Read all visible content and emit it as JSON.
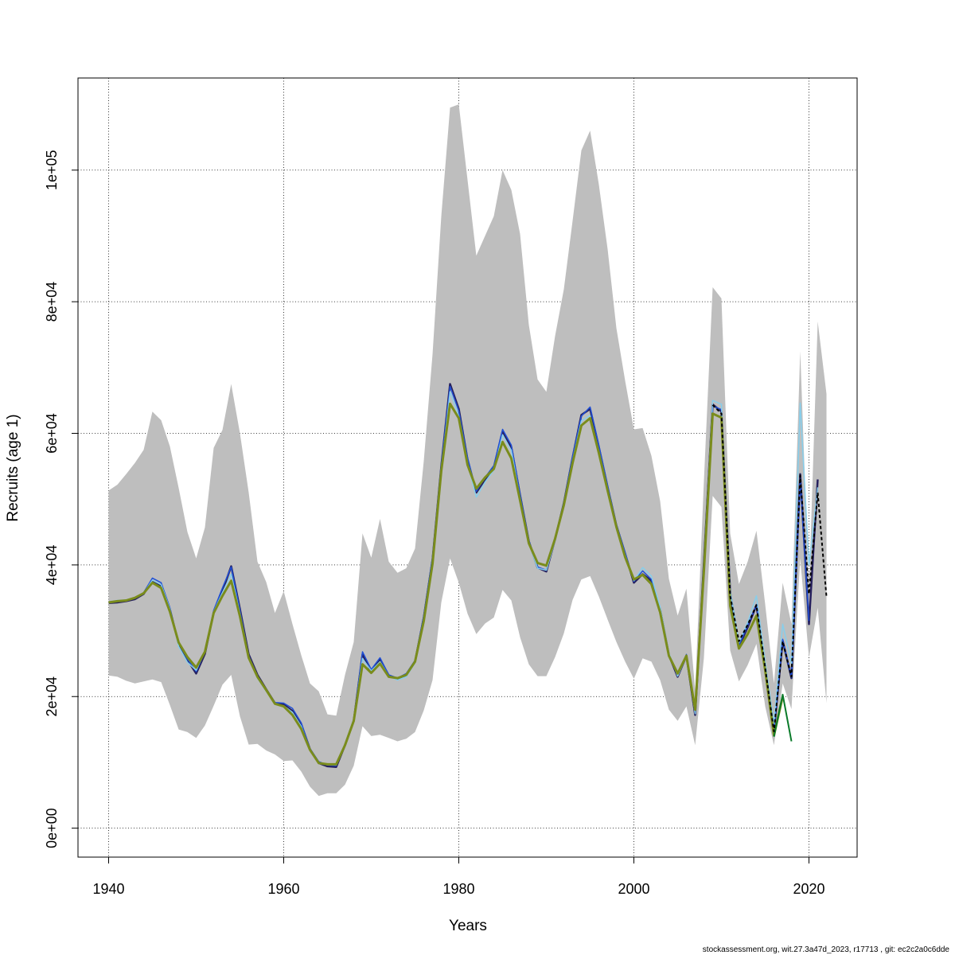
{
  "chart_data": {
    "type": "line",
    "xlabel": "Years",
    "ylabel": "Recruits (age 1)",
    "xlim": [
      1936.5,
      2025.5
    ],
    "ylim": [
      -4400,
      114000
    ],
    "x_ticks": [
      1940,
      1960,
      1980,
      2000,
      2020
    ],
    "x_tick_labels": [
      "1940",
      "1960",
      "1980",
      "2000",
      "2020"
    ],
    "y_ticks": [
      0,
      20000,
      40000,
      60000,
      80000,
      100000
    ],
    "y_tick_labels": [
      "0e+00",
      "2e+04",
      "4e+04",
      "6e+04",
      "8e+04",
      "1e+05"
    ],
    "grid": true,
    "footer": "stockassessment.org, wit.27.3a47d_2023, r17713 , git: ec2c2a0c6dde",
    "band": {
      "color": "#bebebe",
      "x": [
        1940,
        1941,
        1942,
        1943,
        1944,
        1945,
        1946,
        1947,
        1948,
        1949,
        1950,
        1951,
        1952,
        1953,
        1954,
        1955,
        1956,
        1957,
        1958,
        1959,
        1960,
        1961,
        1962,
        1963,
        1964,
        1965,
        1966,
        1967,
        1968,
        1969,
        1970,
        1971,
        1972,
        1973,
        1974,
        1975,
        1976,
        1977,
        1978,
        1979,
        1980,
        1981,
        1982,
        1983,
        1984,
        1985,
        1986,
        1987,
        1988,
        1989,
        1990,
        1991,
        1992,
        1993,
        1994,
        1995,
        1996,
        1997,
        1998,
        1999,
        2000,
        2001,
        2002,
        2003,
        2004,
        2005,
        2006,
        2007,
        2008,
        2009,
        2010,
        2011,
        2012,
        2013,
        2014,
        2015,
        2016,
        2017,
        2018,
        2019,
        2020,
        2021,
        2022
      ],
      "upper": [
        51300,
        52200,
        53800,
        55500,
        57500,
        63300,
        62000,
        58000,
        51700,
        45000,
        41000,
        45700,
        57800,
        60500,
        67500,
        60000,
        51000,
        40500,
        37400,
        32700,
        36000,
        31000,
        26300,
        22000,
        20800,
        17300,
        17100,
        23300,
        28300,
        44800,
        41100,
        47000,
        40500,
        38800,
        39500,
        42500,
        55800,
        72000,
        93000,
        109500,
        110000,
        98500,
        87000,
        90000,
        93000,
        100000,
        97000,
        90300,
        76500,
        68200,
        66300,
        74800,
        81900,
        92300,
        103000,
        106000,
        97800,
        88000,
        76000,
        68000,
        60600,
        60800,
        56600,
        49700,
        37900,
        32300,
        36400,
        21000,
        52800,
        82200,
        80500,
        44800,
        37100,
        40500,
        45200,
        34000,
        22000,
        37300,
        31000,
        72500,
        36000,
        77000,
        66000
      ],
      "lower": [
        23200,
        23000,
        22400,
        22000,
        22300,
        22600,
        22200,
        18700,
        15000,
        14600,
        13700,
        15600,
        18600,
        21800,
        23300,
        17000,
        12700,
        12800,
        11800,
        11200,
        10200,
        10300,
        8600,
        6300,
        4900,
        5300,
        5300,
        6600,
        9500,
        15500,
        14000,
        14200,
        13700,
        13200,
        13600,
        14600,
        17900,
        22500,
        34300,
        41000,
        37300,
        32600,
        29500,
        31100,
        32000,
        36200,
        34600,
        29000,
        24900,
        23100,
        23100,
        26000,
        29600,
        34700,
        37800,
        38300,
        35200,
        31700,
        28300,
        25300,
        22700,
        25800,
        25300,
        22500,
        18000,
        16300,
        18500,
        12600,
        25900,
        50500,
        48800,
        27000,
        22300,
        24800,
        28000,
        18500,
        12600,
        22000,
        18100,
        41000,
        25900,
        33500,
        19000
      ]
    },
    "series": [
      {
        "color": "#26205e",
        "width": 2.5,
        "x": [
          1940,
          1941,
          1942,
          1943,
          1944,
          1945,
          1946,
          1947,
          1948,
          1949,
          1950,
          1951,
          1952,
          1953,
          1954,
          1955,
          1956,
          1957,
          1958,
          1959,
          1960,
          1961,
          1962,
          1963,
          1964,
          1965,
          1966,
          1967,
          1968,
          1969,
          1970,
          1971,
          1972,
          1973,
          1974,
          1975,
          1976,
          1977,
          1978,
          1979,
          1980,
          1981,
          1982,
          1983,
          1984,
          1985,
          1986,
          1987,
          1988,
          1989,
          1990,
          1991,
          1992,
          1993,
          1994,
          1995,
          1996,
          1997,
          1998,
          1999,
          2000,
          2001,
          2002,
          2003,
          2004,
          2005,
          2006,
          2007,
          2008,
          2009,
          2010,
          2011,
          2012,
          2013,
          2014,
          2015,
          2016,
          2017,
          2018,
          2019,
          2020,
          2021
        ],
        "values": [
          34200,
          34300,
          34500,
          34800,
          35600,
          37600,
          36900,
          33200,
          28000,
          25600,
          23500,
          26500,
          32800,
          36000,
          39800,
          33300,
          26400,
          23300,
          21100,
          19000,
          18800,
          17800,
          15800,
          12000,
          9900,
          9400,
          9300,
          12600,
          16300,
          26400,
          23800,
          25600,
          23200,
          22700,
          23200,
          25300,
          32000,
          40800,
          55000,
          67500,
          63700,
          56000,
          51000,
          53000,
          54800,
          60300,
          57900,
          50600,
          43600,
          39600,
          39000,
          43900,
          49400,
          56300,
          62800,
          63700,
          57900,
          51800,
          46000,
          41700,
          37300,
          38600,
          37600,
          33300,
          26300,
          23000,
          26200,
          17200,
          40400,
          64400,
          63300,
          35800,
          27600,
          30500,
          33900,
          24500,
          14800,
          28500,
          22800,
          53800,
          31000,
          53000
        ]
      },
      {
        "color": "#1f4fd6",
        "width": 1.5,
        "x": [
          1940,
          1941,
          1942,
          1943,
          1944,
          1945,
          1946,
          1947,
          1948,
          1949,
          1950,
          1951,
          1952,
          1953,
          1954,
          1955,
          1956,
          1957,
          1958,
          1959,
          1960,
          1961,
          1962,
          1963,
          1964,
          1965,
          1966,
          1967,
          1968,
          1969,
          1970,
          1971,
          1972,
          1973,
          1974,
          1975,
          1976,
          1977,
          1978,
          1979,
          1980,
          1981,
          1982,
          1983,
          1984,
          1985,
          1986,
          1987,
          1988,
          1989,
          1990,
          1991,
          1992,
          1993,
          1994,
          1995,
          1996,
          1997,
          1998,
          1999,
          2000,
          2001,
          2002,
          2003,
          2004,
          2005,
          2006,
          2007,
          2008,
          2009,
          2010,
          2011,
          2012,
          2013,
          2014,
          2015,
          2016,
          2017,
          2018,
          2019,
          2020
        ],
        "values": [
          34300,
          34500,
          34600,
          35000,
          35800,
          38000,
          37300,
          33500,
          28100,
          25700,
          23800,
          26800,
          33100,
          36500,
          39700,
          33100,
          26200,
          23100,
          21000,
          19100,
          19000,
          18200,
          16000,
          12100,
          10100,
          9600,
          9500,
          12800,
          16500,
          26800,
          24100,
          25900,
          23300,
          22800,
          23500,
          25500,
          32300,
          41200,
          55300,
          67100,
          63400,
          56300,
          51200,
          53300,
          55100,
          60600,
          58200,
          50800,
          43800,
          39700,
          39200,
          44100,
          49600,
          56500,
          62600,
          64000,
          58200,
          52100,
          46200,
          41900,
          37500,
          39100,
          37800,
          33500,
          26500,
          23200,
          26400,
          17400,
          40800,
          64200,
          63600,
          36000,
          27800,
          30800,
          34000,
          24700,
          15000,
          28700,
          22900,
          53000,
          31500
        ]
      },
      {
        "color": "#87ceeb",
        "width": 1.5,
        "x": [
          1940,
          1941,
          1942,
          1943,
          1944,
          1945,
          1946,
          1947,
          1948,
          1949,
          1950,
          1951,
          1952,
          1953,
          1954,
          1955,
          1956,
          1957,
          1958,
          1959,
          1960,
          1961,
          1962,
          1963,
          1964,
          1965,
          1966,
          1967,
          1968,
          1969,
          1970,
          1971,
          1972,
          1973,
          1974,
          1975,
          1976,
          1977,
          1978,
          1979,
          1980,
          1981,
          1982,
          1983,
          1984,
          1985,
          1986,
          1987,
          1988,
          1989,
          1990,
          1991,
          1992,
          1993,
          1994,
          1995,
          1996,
          1997,
          1998,
          1999,
          2000,
          2001,
          2002,
          2003,
          2004,
          2005,
          2006,
          2007,
          2008,
          2009,
          2010,
          2011,
          2012,
          2013,
          2014,
          2015,
          2016,
          2017,
          2018,
          2019,
          2020,
          2021
        ],
        "values": [
          34400,
          34600,
          34700,
          35000,
          35700,
          37700,
          37000,
          33300,
          27600,
          25200,
          24000,
          26900,
          32900,
          35800,
          38600,
          32600,
          25900,
          22800,
          20800,
          18900,
          18600,
          17600,
          15500,
          11800,
          9900,
          9600,
          9600,
          12800,
          16600,
          25800,
          23900,
          25300,
          23100,
          22500,
          23000,
          25100,
          31800,
          40300,
          54300,
          66300,
          62600,
          55400,
          50300,
          52600,
          54400,
          59800,
          57400,
          50100,
          43300,
          39500,
          39200,
          43700,
          49100,
          55900,
          61900,
          62700,
          57300,
          51500,
          45800,
          41500,
          37600,
          39600,
          38300,
          33600,
          26600,
          23100,
          26100,
          17400,
          40100,
          65000,
          64400,
          36100,
          28200,
          31300,
          35300,
          25300,
          15900,
          31000,
          25000,
          64600,
          40000,
          51800
        ]
      },
      {
        "color": "#7a8c1c",
        "width": 3,
        "x": [
          1940,
          1941,
          1942,
          1943,
          1944,
          1945,
          1946,
          1947,
          1948,
          1949,
          1950,
          1951,
          1952,
          1953,
          1954,
          1955,
          1956,
          1957,
          1958,
          1959,
          1960,
          1961,
          1962,
          1963,
          1964,
          1965,
          1966,
          1967,
          1968,
          1969,
          1970,
          1971,
          1972,
          1973,
          1974,
          1975,
          1976,
          1977,
          1978,
          1979,
          1980,
          1981,
          1982,
          1983,
          1984,
          1985,
          1986,
          1987,
          1988,
          1989,
          1990,
          1991,
          1992,
          1993,
          1994,
          1995,
          1996,
          1997,
          1998,
          1999,
          2000,
          2001,
          2002,
          2003,
          2004,
          2005,
          2006,
          2007,
          2008,
          2009,
          2010,
          2011,
          2012,
          2013,
          2014,
          2015,
          2016,
          2017
        ],
        "values": [
          34300,
          34500,
          34600,
          35000,
          35700,
          37300,
          36500,
          32900,
          28200,
          26000,
          24400,
          26800,
          32700,
          35300,
          37600,
          32200,
          25900,
          23000,
          21000,
          18900,
          18500,
          17200,
          15100,
          11900,
          9900,
          9700,
          9700,
          12600,
          16300,
          24900,
          23600,
          25000,
          23000,
          22800,
          23300,
          25300,
          31500,
          40200,
          54300,
          64500,
          62300,
          55200,
          51600,
          53300,
          54600,
          58700,
          56200,
          49800,
          43300,
          40300,
          39900,
          44000,
          49100,
          55500,
          61200,
          62300,
          57000,
          51300,
          45800,
          41200,
          37800,
          38500,
          37100,
          32800,
          26200,
          23500,
          26200,
          18000,
          39100,
          63000,
          62400,
          33800,
          27300,
          29500,
          32300,
          24000,
          14100,
          20000
        ]
      },
      {
        "color": "#0a7a2a",
        "width": 2,
        "x": [
          2016,
          2017,
          2018
        ],
        "values": [
          13900,
          20300,
          13200
        ]
      },
      {
        "color": "#000000",
        "width": 2,
        "dash": "4 3",
        "x": [
          2009,
          2010,
          2011,
          2012,
          2013,
          2014,
          2015,
          2016,
          2017,
          2018,
          2019,
          2020,
          2021,
          2022
        ],
        "values": [
          64300,
          63000,
          35300,
          28400,
          30900,
          33900,
          24400,
          14700,
          28400,
          23000,
          53600,
          35600,
          51000,
          35200
        ]
      }
    ]
  }
}
